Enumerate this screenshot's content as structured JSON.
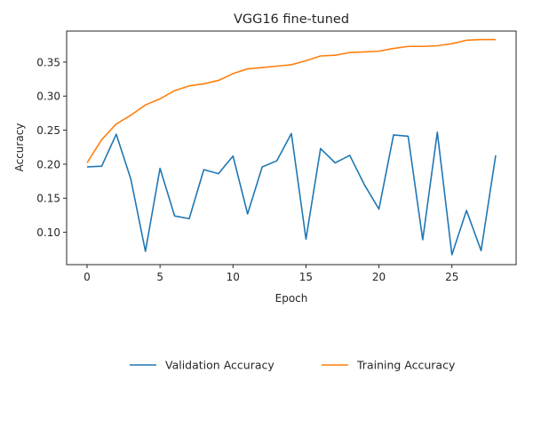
{
  "chart_data": {
    "type": "line",
    "title": "VGG16 fine-tuned",
    "xlabel": "Epoch",
    "ylabel": "Accuracy",
    "xlim": [
      -1.4,
      29.4
    ],
    "ylim": [
      0.0525,
      0.3955
    ],
    "xticks": [
      0,
      5,
      10,
      15,
      20,
      25
    ],
    "yticks": [
      0.1,
      0.15,
      0.2,
      0.25,
      0.3,
      0.35
    ],
    "xtick_labels": [
      "0",
      "5",
      "10",
      "15",
      "20",
      "25"
    ],
    "ytick_labels": [
      "0.10",
      "0.15",
      "0.20",
      "0.25",
      "0.30",
      "0.35"
    ],
    "grid": false,
    "legend_position": "below plot, centered, two columns",
    "x": [
      0,
      1,
      2,
      3,
      4,
      5,
      6,
      7,
      8,
      9,
      10,
      11,
      12,
      13,
      14,
      15,
      16,
      17,
      18,
      19,
      20,
      21,
      22,
      23,
      24,
      25,
      26,
      27,
      28
    ],
    "series": [
      {
        "name": "Validation Accuracy",
        "color": "#1f77b4",
        "values": [
          0.196,
          0.197,
          0.244,
          0.178,
          0.072,
          0.194,
          0.124,
          0.12,
          0.192,
          0.186,
          0.212,
          0.127,
          0.196,
          0.205,
          0.245,
          0.09,
          0.223,
          0.202,
          0.213,
          0.17,
          0.134,
          0.243,
          0.241,
          0.089,
          0.247,
          0.067,
          0.132,
          0.073,
          0.213
        ]
      },
      {
        "name": "Training Accuracy",
        "color": "#ff7f0e",
        "values": [
          0.202,
          0.236,
          0.259,
          0.272,
          0.287,
          0.296,
          0.308,
          0.315,
          0.318,
          0.323,
          0.333,
          0.34,
          0.342,
          0.344,
          0.346,
          0.352,
          0.359,
          0.36,
          0.364,
          0.365,
          0.366,
          0.37,
          0.373,
          0.373,
          0.374,
          0.377,
          0.382,
          0.383,
          0.383
        ]
      }
    ]
  }
}
